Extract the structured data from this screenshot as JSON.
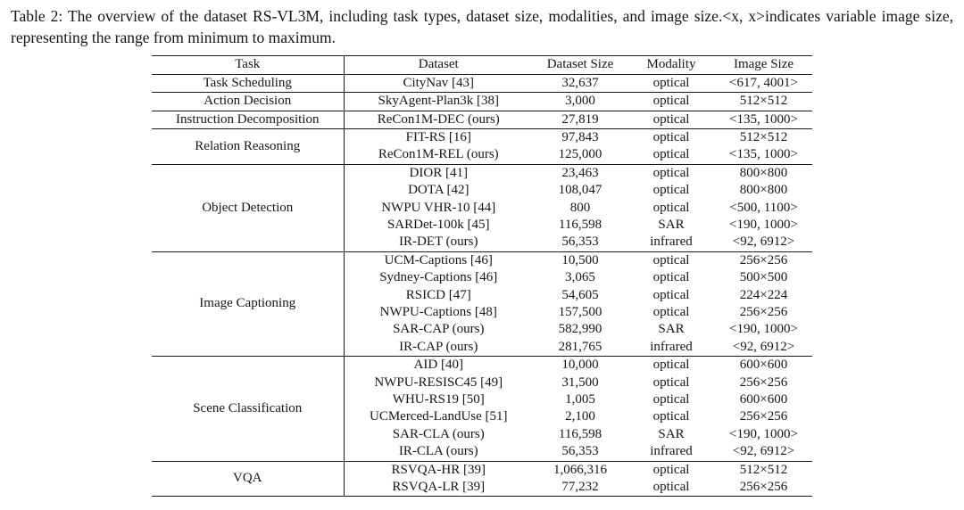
{
  "caption": {
    "text": "Table 2: The overview of the dataset RS-VL3M, including task types, dataset size, modalities, and image size.<x, x>indicates variable image size, representing the range from minimum to maximum."
  },
  "table": {
    "headers": [
      "Task",
      "Dataset",
      "Dataset Size",
      "Modality",
      "Image Size"
    ],
    "groups": [
      {
        "task": "Task Scheduling",
        "rows": [
          [
            "CityNav [43]",
            "32,637",
            "optical",
            "<617, 4001>"
          ]
        ]
      },
      {
        "task": "Action Decision",
        "rows": [
          [
            "SkyAgent-Plan3k [38]",
            "3,000",
            "optical",
            "512×512"
          ]
        ]
      },
      {
        "task": "Instruction Decomposition",
        "rows": [
          [
            "ReCon1M-DEC (ours)",
            "27,819",
            "optical",
            "<135, 1000>"
          ]
        ]
      },
      {
        "task": "Relation Reasoning",
        "rows": [
          [
            "FIT-RS [16]",
            "97,843",
            "optical",
            "512×512"
          ],
          [
            "ReCon1M-REL (ours)",
            "125,000",
            "optical",
            "<135, 1000>"
          ]
        ]
      },
      {
        "task": "Object Detection",
        "rows": [
          [
            "DIOR [41]",
            "23,463",
            "optical",
            "800×800"
          ],
          [
            "DOTA [42]",
            "108,047",
            "optical",
            "800×800"
          ],
          [
            "NWPU VHR-10 [44]",
            "800",
            "optical",
            "<500, 1100>"
          ],
          [
            "SARDet-100k [45]",
            "116,598",
            "SAR",
            "<190, 1000>"
          ],
          [
            "IR-DET (ours)",
            "56,353",
            "infrared",
            "<92, 6912>"
          ]
        ]
      },
      {
        "task": "Image Captioning",
        "rows": [
          [
            "UCM-Captions [46]",
            "10,500",
            "optical",
            "256×256"
          ],
          [
            "Sydney-Captions [46]",
            "3,065",
            "optical",
            "500×500"
          ],
          [
            "RSICD [47]",
            "54,605",
            "optical",
            "224×224"
          ],
          [
            "NWPU-Captions [48]",
            "157,500",
            "optical",
            "256×256"
          ],
          [
            "SAR-CAP (ours)",
            "582,990",
            "SAR",
            "<190, 1000>"
          ],
          [
            "IR-CAP (ours)",
            "281,765",
            "infrared",
            "<92, 6912>"
          ]
        ]
      },
      {
        "task": "Scene Classification",
        "rows": [
          [
            "AID [40]",
            "10,000",
            "optical",
            "600×600"
          ],
          [
            "NWPU-RESISC45 [49]",
            "31,500",
            "optical",
            "256×256"
          ],
          [
            "WHU-RS19 [50]",
            "1,005",
            "optical",
            "600×600"
          ],
          [
            "UCMerced-LandUse [51]",
            "2,100",
            "optical",
            "256×256"
          ],
          [
            "SAR-CLA (ours)",
            "116,598",
            "SAR",
            "<190, 1000>"
          ],
          [
            "IR-CLA (ours)",
            "56,353",
            "infrared",
            "<92, 6912>"
          ]
        ]
      },
      {
        "task": "VQA",
        "rows": [
          [
            "RSVQA-HR [39]",
            "1,066,316",
            "optical",
            "512×512"
          ],
          [
            "RSVQA-LR [39]",
            "77,232",
            "optical",
            "256×256"
          ]
        ]
      }
    ]
  },
  "chart_data": {
    "type": "table",
    "title": "Table 2: The overview of the dataset RS-VL3M",
    "columns": [
      "Task",
      "Dataset",
      "Dataset Size",
      "Modality",
      "Image Size"
    ],
    "rows": [
      [
        "Task Scheduling",
        "CityNav [43]",
        "32,637",
        "optical",
        "<617, 4001>"
      ],
      [
        "Action Decision",
        "SkyAgent-Plan3k [38]",
        "3,000",
        "optical",
        "512×512"
      ],
      [
        "Instruction Decomposition",
        "ReCon1M-DEC (ours)",
        "27,819",
        "optical",
        "<135, 1000>"
      ],
      [
        "Relation Reasoning",
        "FIT-RS [16]",
        "97,843",
        "optical",
        "512×512"
      ],
      [
        "Relation Reasoning",
        "ReCon1M-REL (ours)",
        "125,000",
        "optical",
        "<135, 1000>"
      ],
      [
        "Object Detection",
        "DIOR [41]",
        "23,463",
        "optical",
        "800×800"
      ],
      [
        "Object Detection",
        "DOTA [42]",
        "108,047",
        "optical",
        "800×800"
      ],
      [
        "Object Detection",
        "NWPU VHR-10 [44]",
        "800",
        "optical",
        "<500, 1100>"
      ],
      [
        "Object Detection",
        "SARDet-100k [45]",
        "116,598",
        "SAR",
        "<190, 1000>"
      ],
      [
        "Object Detection",
        "IR-DET (ours)",
        "56,353",
        "infrared",
        "<92, 6912>"
      ],
      [
        "Image Captioning",
        "UCM-Captions [46]",
        "10,500",
        "optical",
        "256×256"
      ],
      [
        "Image Captioning",
        "Sydney-Captions [46]",
        "3,065",
        "optical",
        "500×500"
      ],
      [
        "Image Captioning",
        "RSICD [47]",
        "54,605",
        "optical",
        "224×224"
      ],
      [
        "Image Captioning",
        "NWPU-Captions [48]",
        "157,500",
        "optical",
        "256×256"
      ],
      [
        "Image Captioning",
        "SAR-CAP (ours)",
        "582,990",
        "SAR",
        "<190, 1000>"
      ],
      [
        "Image Captioning",
        "IR-CAP (ours)",
        "281,765",
        "infrared",
        "<92, 6912>"
      ],
      [
        "Scene Classification",
        "AID [40]",
        "10,000",
        "optical",
        "600×600"
      ],
      [
        "Scene Classification",
        "NWPU-RESISC45 [49]",
        "31,500",
        "optical",
        "256×256"
      ],
      [
        "Scene Classification",
        "WHU-RS19 [50]",
        "1,005",
        "optical",
        "600×600"
      ],
      [
        "Scene Classification",
        "UCMerced-LandUse [51]",
        "2,100",
        "optical",
        "256×256"
      ],
      [
        "Scene Classification",
        "SAR-CLA (ours)",
        "116,598",
        "SAR",
        "<190, 1000>"
      ],
      [
        "Scene Classification",
        "IR-CLA (ours)",
        "56,353",
        "infrared",
        "<92, 6912>"
      ],
      [
        "VQA",
        "RSVQA-HR [39]",
        "1,066,316",
        "optical",
        "512×512"
      ],
      [
        "VQA",
        "RSVQA-LR [39]",
        "77,232",
        "optical",
        "256×256"
      ]
    ]
  }
}
